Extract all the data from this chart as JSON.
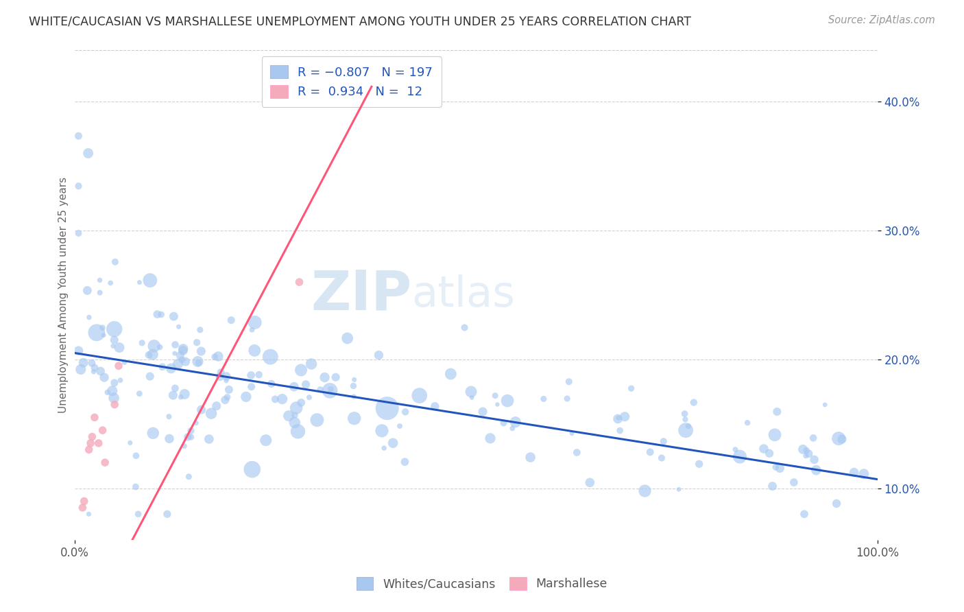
{
  "title": "WHITE/CAUCASIAN VS MARSHALLESE UNEMPLOYMENT AMONG YOUTH UNDER 25 YEARS CORRELATION CHART",
  "source": "Source: ZipAtlas.com",
  "ylabel": "Unemployment Among Youth under 25 years",
  "yticks": [
    0.1,
    0.2,
    0.3,
    0.4
  ],
  "ytick_labels": [
    "10.0%",
    "20.0%",
    "30.0%",
    "40.0%"
  ],
  "blue_color": "#A8C8F0",
  "pink_color": "#F4AABB",
  "blue_line_color": "#2255BB",
  "pink_line_color": "#FF5577",
  "watermark_zip": "ZIP",
  "watermark_atlas": "atlas",
  "blue_R": -0.807,
  "blue_N": 197,
  "pink_R": 0.934,
  "pink_N": 12,
  "blue_intercept": 0.205,
  "blue_slope": -0.098,
  "pink_intercept": -0.025,
  "pink_slope": 1.18,
  "legend_label_blue": "Whites/Caucasians",
  "legend_label_pink": "Marshallese",
  "background_color": "#FFFFFF",
  "grid_color": "#CCCCCC"
}
